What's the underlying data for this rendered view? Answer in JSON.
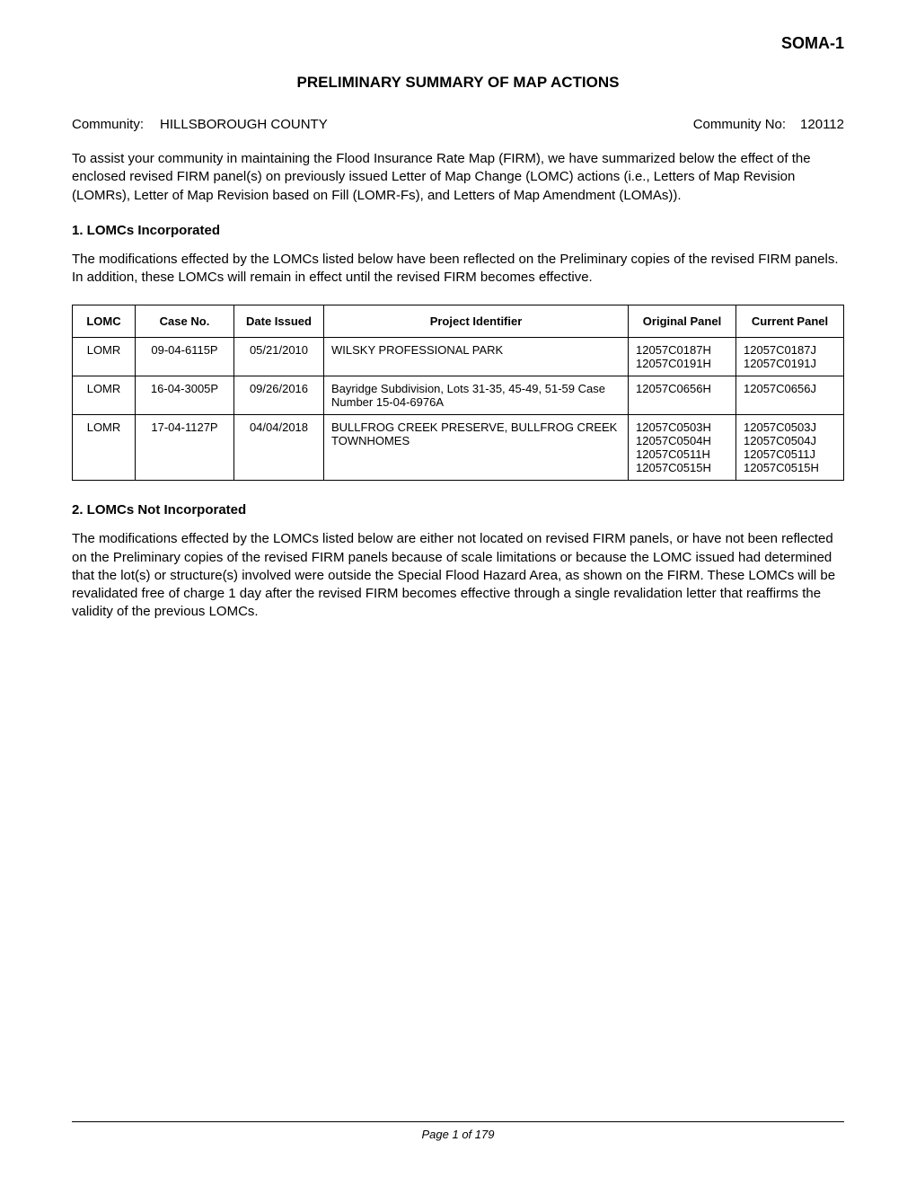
{
  "doc_code": "SOMA-1",
  "title": "PRELIMINARY SUMMARY OF MAP ACTIONS",
  "community": {
    "label": "Community:",
    "name": "HILLSBOROUGH COUNTY",
    "no_label": "Community No:",
    "no": "120112"
  },
  "intro": "To assist your community in maintaining the Flood Insurance Rate Map (FIRM), we have summarized below the effect of the enclosed revised FIRM panel(s) on previously issued Letter of Map Change (LOMC) actions (i.e., Letters of Map Revision (LOMRs), Letter of Map Revision based on Fill (LOMR-Fs), and Letters of Map Amendment (LOMAs)).",
  "section1": {
    "heading": "1. LOMCs Incorporated",
    "para": "The modifications effected by the LOMCs listed below have been reflected on the Preliminary copies of the revised FIRM panels. In addition, these LOMCs will remain in effect until the revised FIRM becomes effective."
  },
  "table": {
    "headers": {
      "lomc": "LOMC",
      "case": "Case No.",
      "date": "Date Issued",
      "proj": "Project Identifier",
      "orig": "Original Panel",
      "curr": "Current Panel"
    },
    "rows": [
      {
        "lomc": "LOMR",
        "case": "09-04-6115P",
        "date": "05/21/2010",
        "proj": "WILSKY PROFESSIONAL PARK",
        "orig": [
          "12057C0187H",
          "12057C0191H"
        ],
        "curr": [
          "12057C0187J",
          "12057C0191J"
        ]
      },
      {
        "lomc": "LOMR",
        "case": "16-04-3005P",
        "date": "09/26/2016",
        "proj": "Bayridge Subdivision, Lots 31-35, 45-49, 51-59 Case Number 15-04-6976A",
        "orig": [
          "12057C0656H"
        ],
        "curr": [
          "12057C0656J"
        ]
      },
      {
        "lomc": "LOMR",
        "case": "17-04-1127P",
        "date": "04/04/2018",
        "proj": "BULLFROG CREEK PRESERVE, BULLFROG CREEK TOWNHOMES",
        "orig": [
          "12057C0503H",
          "12057C0504H",
          "12057C0511H",
          "12057C0515H"
        ],
        "curr": [
          "12057C0503J",
          "12057C0504J",
          "12057C0511J",
          "12057C0515H"
        ]
      }
    ]
  },
  "section2": {
    "heading": "2.   LOMCs Not Incorporated",
    "para": "The modifications effected by the LOMCs listed below are either not located on revised FIRM panels, or have not been reflected on the Preliminary copies of the revised FIRM panels because of scale limitations or because the LOMC issued had determined that the lot(s) or structure(s) involved were outside the Special Flood Hazard Area, as shown on the FIRM.   These LOMCs will be revalidated free of charge 1 day after the revised FIRM becomes effective through a single revalidation letter that reaffirms the validity of the previous LOMCs."
  },
  "footer": "Page 1 of 179"
}
